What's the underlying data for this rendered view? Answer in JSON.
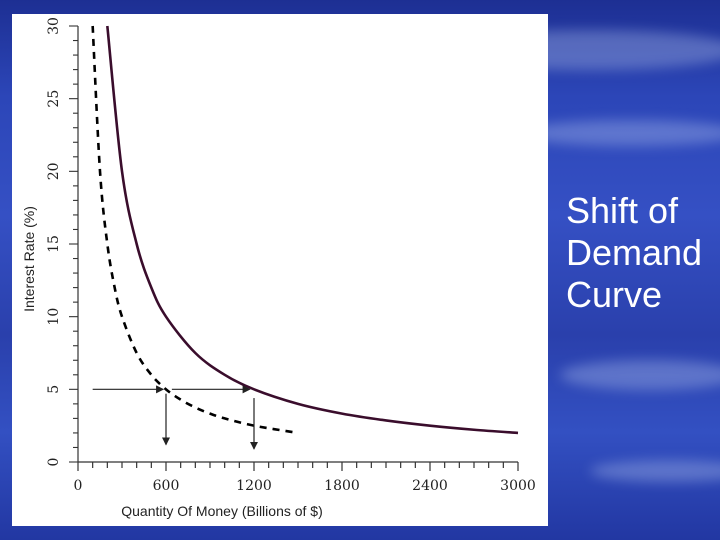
{
  "slide": {
    "title_lines": [
      "Shift of",
      "Demand",
      "Curve"
    ]
  },
  "chart_data": {
    "type": "line",
    "title": "",
    "xlabel": "Quantity Of Money (Billions of $)",
    "ylabel": "Interest Rate (%)",
    "xlim": [
      0,
      3000
    ],
    "ylim": [
      0,
      30
    ],
    "x_ticks": [
      0,
      600,
      1200,
      1800,
      2400,
      3000
    ],
    "y_ticks": [
      0,
      5,
      10,
      15,
      20,
      25,
      30
    ],
    "grid": false,
    "series": [
      {
        "style": "solid",
        "color": "#3a0d2c",
        "x": [
          200,
          300,
          400,
          500,
          600,
          800,
          1000,
          1200,
          1500,
          1800,
          2100,
          2400,
          2700,
          3000
        ],
        "y": [
          30,
          20,
          15,
          12,
          10,
          7.5,
          6,
          5,
          4,
          3.33,
          2.86,
          2.5,
          2.22,
          2
        ]
      },
      {
        "style": "dashed",
        "color": "#000000",
        "x": [
          100,
          150,
          200,
          250,
          300,
          400,
          500,
          600,
          700,
          800,
          900,
          1000,
          1200,
          1500
        ],
        "y": [
          30,
          20,
          15,
          12,
          10,
          7.5,
          6,
          5,
          4.29,
          3.75,
          3.33,
          3,
          2.5,
          2
        ]
      }
    ],
    "annotations": [
      {
        "type": "arrow",
        "from": [
          100,
          5
        ],
        "to": [
          580,
          5
        ]
      },
      {
        "type": "arrow",
        "from": [
          640,
          5
        ],
        "to": [
          1170,
          5
        ]
      },
      {
        "type": "arrow",
        "from": [
          600,
          4.7
        ],
        "to": [
          600,
          1.2
        ]
      },
      {
        "type": "arrow",
        "from": [
          1200,
          4.4
        ],
        "to": [
          1200,
          0.9
        ]
      }
    ]
  },
  "colors": {
    "background": "#2c46b8",
    "panel": "#ffffff",
    "title_text": "#ffffff"
  }
}
